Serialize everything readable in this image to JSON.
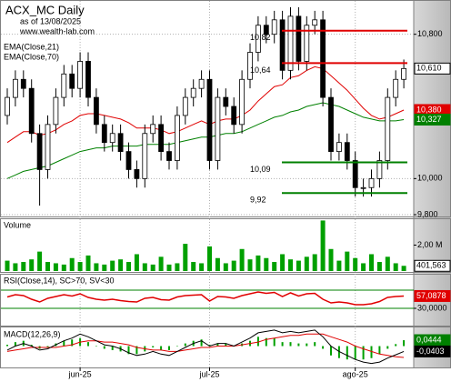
{
  "chart_data": [
    {
      "type": "candlestick",
      "title": "ACX_MC Daily",
      "subtitle": "as of 13/08/2025",
      "source": "www.wealth-lab.com",
      "categories": [
        null,
        null,
        null,
        null,
        null,
        null,
        null,
        null,
        null,
        "jun-25",
        null,
        null,
        null,
        null,
        null,
        null,
        null,
        null,
        null,
        null,
        null,
        null,
        null,
        null,
        null,
        "jul-25",
        null,
        null,
        null,
        null,
        null,
        null,
        null,
        null,
        null,
        null,
        null,
        null,
        null,
        null,
        null,
        null,
        null,
        "ago-25",
        null,
        null,
        null,
        null,
        null,
        null
      ],
      "open": [
        10.35,
        10.45,
        10.55,
        10.5,
        10.25,
        10.05,
        10.3,
        10.45,
        10.58,
        10.5,
        10.65,
        10.45,
        10.3,
        10.2,
        10.25,
        10.15,
        10.05,
        10.0,
        10.25,
        10.3,
        10.15,
        10.1,
        10.35,
        10.45,
        10.5,
        10.55,
        10.1,
        10.45,
        10.4,
        10.3,
        10.55,
        10.7,
        10.85,
        10.8,
        10.88,
        10.6,
        10.9,
        10.65,
        10.85,
        10.88,
        10.45,
        10.15,
        10.2,
        10.1,
        9.95,
        9.95,
        10.0,
        10.1,
        10.45,
        10.55
      ],
      "high": [
        10.5,
        10.6,
        10.6,
        10.55,
        10.3,
        10.35,
        10.5,
        10.63,
        10.63,
        10.7,
        10.7,
        10.5,
        10.35,
        10.3,
        10.3,
        10.2,
        10.1,
        10.3,
        10.35,
        10.35,
        10.2,
        10.4,
        10.5,
        10.55,
        10.6,
        10.6,
        10.5,
        10.5,
        10.45,
        10.6,
        10.75,
        10.9,
        10.9,
        10.93,
        10.93,
        10.95,
        10.95,
        10.9,
        10.93,
        10.93,
        10.5,
        10.25,
        10.25,
        10.15,
        10.0,
        10.05,
        10.15,
        10.5,
        10.6,
        10.66
      ],
      "low": [
        10.3,
        10.4,
        10.45,
        10.2,
        9.85,
        10.0,
        10.25,
        10.4,
        10.45,
        10.45,
        10.4,
        10.25,
        10.15,
        10.15,
        10.1,
        10.0,
        9.95,
        9.95,
        10.2,
        10.1,
        10.05,
        10.05,
        10.3,
        10.4,
        10.45,
        10.05,
        10.05,
        10.35,
        10.25,
        10.25,
        10.5,
        10.65,
        10.75,
        10.75,
        10.55,
        10.55,
        10.6,
        10.6,
        10.8,
        10.4,
        10.1,
        10.1,
        10.05,
        9.9,
        9.9,
        9.9,
        9.95,
        10.05,
        10.4,
        10.5
      ],
      "close": [
        10.45,
        10.55,
        10.5,
        10.25,
        10.05,
        10.3,
        10.45,
        10.58,
        10.5,
        10.65,
        10.45,
        10.3,
        10.2,
        10.25,
        10.15,
        10.05,
        10.0,
        10.25,
        10.3,
        10.15,
        10.1,
        10.35,
        10.45,
        10.5,
        10.55,
        10.1,
        10.45,
        10.4,
        10.3,
        10.55,
        10.7,
        10.85,
        10.8,
        10.88,
        10.6,
        10.9,
        10.65,
        10.85,
        10.88,
        10.45,
        10.15,
        10.2,
        10.1,
        9.95,
        9.95,
        10.0,
        10.1,
        10.45,
        10.55,
        10.61
      ],
      "series": [
        {
          "name": "EMA(Close,21)",
          "color": "#e00000",
          "values": [
            10.2,
            10.23,
            10.26,
            10.26,
            10.24,
            10.25,
            10.27,
            10.3,
            10.32,
            10.35,
            10.36,
            10.36,
            10.35,
            10.34,
            10.33,
            10.31,
            10.28,
            10.28,
            10.28,
            10.27,
            10.25,
            10.26,
            10.28,
            10.3,
            10.32,
            10.3,
            10.32,
            10.33,
            10.33,
            10.35,
            10.38,
            10.43,
            10.47,
            10.51,
            10.52,
            10.56,
            10.57,
            10.6,
            10.62,
            10.61,
            10.57,
            10.53,
            10.49,
            10.44,
            10.39,
            10.35,
            10.33,
            10.34,
            10.36,
            10.38
          ]
        },
        {
          "name": "EMA(Close,70)",
          "color": "#008000",
          "values": [
            10.0,
            10.02,
            10.04,
            10.05,
            10.06,
            10.07,
            10.09,
            10.11,
            10.13,
            10.15,
            10.16,
            10.17,
            10.17,
            10.18,
            10.18,
            10.18,
            10.18,
            10.19,
            10.19,
            10.19,
            10.19,
            10.2,
            10.21,
            10.22,
            10.23,
            10.23,
            10.24,
            10.25,
            10.25,
            10.26,
            10.28,
            10.3,
            10.32,
            10.34,
            10.35,
            10.37,
            10.38,
            10.4,
            10.41,
            10.42,
            10.41,
            10.4,
            10.38,
            10.36,
            10.34,
            10.33,
            10.32,
            10.32,
            10.32,
            10.327
          ]
        }
      ],
      "ylim": [
        9.79,
        10.99
      ],
      "yticks": [
        {
          "value": 10.8,
          "label": "10,800"
        },
        {
          "value": 10.0,
          "label": "10,000"
        },
        {
          "value": 9.8,
          "label": "9,800"
        }
      ],
      "grid": true,
      "levels": [
        {
          "value": 10.82,
          "label": "10,82",
          "color": "#e00000"
        },
        {
          "value": 10.64,
          "label": "10,64",
          "color": "#e00000"
        },
        {
          "value": 10.09,
          "label": "10,09",
          "color": "#008000"
        },
        {
          "value": 9.92,
          "label": "9,92",
          "color": "#008000"
        }
      ],
      "last_labels": [
        {
          "value": 10.61,
          "label": "10,610",
          "color": "#ffffff"
        },
        {
          "value": 10.38,
          "label": "10,380",
          "color": "#e00000"
        },
        {
          "value": 10.327,
          "label": "10,327",
          "color": "#008000"
        }
      ]
    },
    {
      "type": "bar",
      "title": "Volume",
      "color": "#00a000",
      "values": [
        800000,
        600000,
        700000,
        900000,
        1500000,
        700000,
        600000,
        500000,
        1000000,
        700000,
        1200000,
        600000,
        500000,
        800000,
        900000,
        700000,
        1300000,
        600000,
        500000,
        1100000,
        500000,
        600000,
        2100000,
        700000,
        600000,
        1900000,
        1000000,
        600000,
        800000,
        1700000,
        900000,
        1200000,
        1000000,
        700000,
        1300000,
        900000,
        800000,
        1100000,
        1300000,
        3900000,
        1700000,
        800000,
        1500000,
        1000000,
        600000,
        1300000,
        700000,
        1100000,
        600000,
        401563
      ],
      "ylim": [
        0,
        3930000
      ],
      "yticks": [
        {
          "value": 2000000,
          "label": "2,00 M"
        }
      ],
      "last_labels": [
        {
          "value": 401563,
          "label": "401,563",
          "color": "#ffffff"
        }
      ]
    },
    {
      "type": "line",
      "title": "RSI(Close,14), SC>70, SV<30",
      "color": "#e00000",
      "values": [
        55,
        60,
        58,
        50,
        44,
        52,
        56,
        60,
        57,
        62,
        54,
        50,
        48,
        50,
        47,
        45,
        44,
        52,
        54,
        49,
        48,
        55,
        58,
        59,
        60,
        46,
        56,
        55,
        52,
        58,
        62,
        66,
        63,
        65,
        56,
        64,
        57,
        62,
        63,
        50,
        42,
        44,
        42,
        38,
        38,
        40,
        45,
        54,
        56,
        57.0878
      ],
      "ylim": [
        -8,
        104
      ],
      "yticks": [
        {
          "value": 30,
          "label": "30,0000"
        }
      ],
      "levels": [
        {
          "value": 70,
          "color": "#008000"
        },
        {
          "value": 30,
          "color": "#008000"
        }
      ],
      "last_labels": [
        {
          "value": 57.0878,
          "label": "57,0878",
          "color": "#e00000"
        }
      ]
    },
    {
      "type": "macd",
      "title": "MACD(12,26,9)",
      "macd": [
        -0.03,
        0.0,
        0.02,
        0.0,
        -0.03,
        -0.02,
        0.01,
        0.04,
        0.06,
        0.09,
        0.07,
        0.04,
        0.01,
        0.0,
        -0.02,
        -0.05,
        -0.07,
        -0.06,
        -0.04,
        -0.06,
        -0.07,
        -0.04,
        -0.01,
        0.02,
        0.04,
        0.0,
        0.02,
        0.02,
        0.0,
        0.03,
        0.06,
        0.1,
        0.11,
        0.12,
        0.1,
        0.11,
        0.1,
        0.11,
        0.12,
        0.07,
        0.0,
        -0.04,
        -0.07,
        -0.1,
        -0.12,
        -0.13,
        -0.12,
        -0.09,
        -0.065,
        -0.0403
      ],
      "signal": [
        -0.04,
        -0.03,
        -0.02,
        -0.01,
        -0.01,
        -0.01,
        -0.01,
        0.0,
        0.01,
        0.03,
        0.04,
        0.04,
        0.03,
        0.03,
        0.02,
        0.01,
        -0.01,
        -0.02,
        -0.03,
        -0.03,
        -0.04,
        -0.04,
        -0.03,
        -0.02,
        -0.01,
        -0.01,
        0.0,
        0.0,
        0.0,
        0.01,
        0.02,
        0.03,
        0.05,
        0.06,
        0.07,
        0.08,
        0.08,
        0.09,
        0.09,
        0.09,
        0.07,
        0.05,
        0.03,
        0.0,
        -0.02,
        -0.04,
        -0.06,
        -0.07,
        -0.08,
        -0.0847
      ],
      "histogram": [
        0.01,
        0.03,
        0.04,
        0.01,
        -0.02,
        -0.01,
        0.02,
        0.04,
        0.05,
        0.06,
        0.03,
        0.0,
        -0.02,
        -0.03,
        -0.04,
        -0.06,
        -0.06,
        -0.04,
        -0.01,
        -0.03,
        -0.03,
        0.0,
        0.02,
        0.04,
        0.05,
        0.01,
        0.02,
        0.02,
        0.0,
        0.02,
        0.04,
        0.07,
        0.06,
        0.06,
        0.03,
        0.03,
        0.02,
        0.02,
        0.03,
        -0.02,
        -0.07,
        -0.09,
        -0.1,
        -0.1,
        -0.1,
        -0.09,
        -0.06,
        -0.02,
        0.015,
        0.0444
      ],
      "macd_color": "#000000",
      "signal_color": "#e00000",
      "histogram_color": "#00a000",
      "ylim": [
        -0.16,
        0.14
      ],
      "last_labels": [
        {
          "value": 0.0444,
          "label": "0,0444",
          "color": "#008000"
        },
        {
          "value": -0.0403,
          "label": "-0,0403",
          "color": "#000000"
        }
      ]
    }
  ]
}
